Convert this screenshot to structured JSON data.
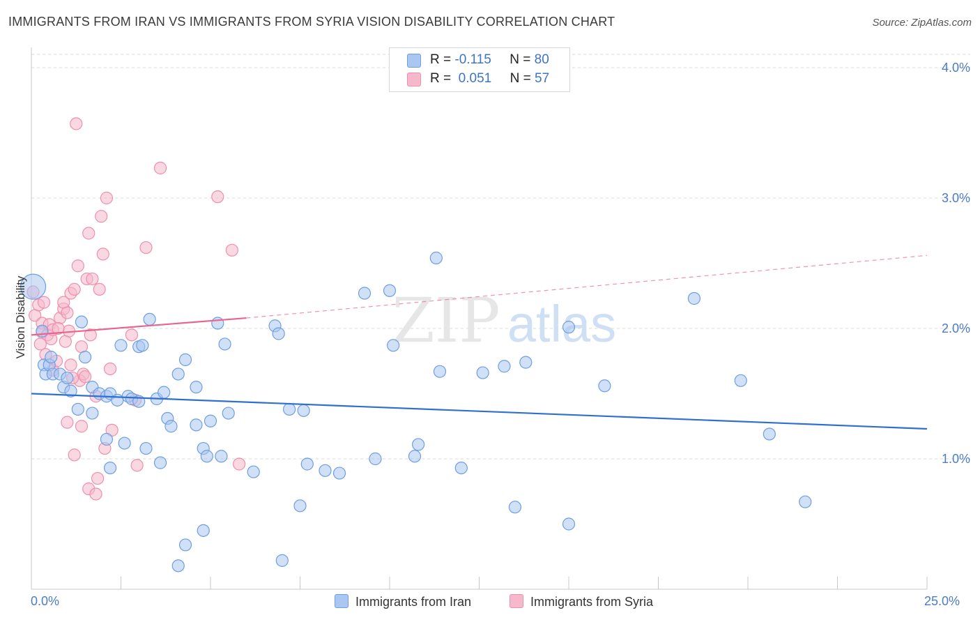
{
  "title": "IMMIGRANTS FROM IRAN VS IMMIGRANTS FROM SYRIA VISION DISABILITY CORRELATION CHART",
  "source": "Source: ZipAtlas.com",
  "watermark": {
    "zip": "ZIP",
    "atlas": "atlas"
  },
  "legend": {
    "rows": [
      {
        "r_label": "R =",
        "r_value": "-0.115",
        "n_label": "N =",
        "n_value": "80"
      },
      {
        "r_label": "R =",
        "r_value": "0.051",
        "n_label": "N =",
        "n_value": "57"
      }
    ]
  },
  "colors": {
    "iran_fill": "#a9c7f0",
    "iran_stroke": "#6e9ee0",
    "iran_line": "#2f6fcf",
    "syria_fill": "#f6b8cb",
    "syria_stroke": "#ee8fae",
    "syria_line": "#e8658f",
    "grid": "#d8d8d8",
    "tick_text": "#4a7cc7"
  },
  "chart_data": {
    "type": "scatter",
    "title": "IMMIGRANTS FROM IRAN VS IMMIGRANTS FROM SYRIA VISION DISABILITY CORRELATION CHART",
    "xlabel": "",
    "ylabel": "Vision Disability",
    "xlim": [
      0,
      25
    ],
    "ylim": [
      0,
      4.15
    ],
    "x_tick_labels": [
      "0.0%",
      "25.0%"
    ],
    "y_ticks": [
      1.0,
      2.0,
      3.0,
      4.0
    ],
    "y_tick_labels": [
      "1.0%",
      "2.0%",
      "3.0%",
      "4.0%"
    ],
    "grid": true,
    "legend_position": "top-center",
    "series": [
      {
        "name": "Immigrants from Iran",
        "R": -0.115,
        "N": 80,
        "trend": {
          "x": [
            0,
            25
          ],
          "y": [
            1.5,
            1.23
          ],
          "dashed_extension": false
        },
        "points": [
          [
            0.05,
            2.32
          ],
          [
            0.3,
            1.98
          ],
          [
            0.35,
            1.72
          ],
          [
            0.4,
            1.65
          ],
          [
            0.5,
            1.72
          ],
          [
            0.55,
            1.78
          ],
          [
            0.6,
            1.65
          ],
          [
            0.8,
            1.65
          ],
          [
            0.9,
            1.55
          ],
          [
            1.0,
            1.62
          ],
          [
            1.1,
            1.52
          ],
          [
            1.3,
            1.38
          ],
          [
            1.4,
            2.05
          ],
          [
            1.5,
            1.78
          ],
          [
            1.7,
            1.55
          ],
          [
            1.7,
            1.35
          ],
          [
            1.9,
            1.5
          ],
          [
            2.1,
            1.48
          ],
          [
            2.2,
            1.5
          ],
          [
            2.1,
            1.15
          ],
          [
            2.2,
            0.93
          ],
          [
            2.4,
            1.45
          ],
          [
            2.5,
            1.87
          ],
          [
            2.6,
            1.12
          ],
          [
            2.7,
            1.48
          ],
          [
            2.8,
            1.46
          ],
          [
            3.0,
            1.44
          ],
          [
            3.0,
            1.86
          ],
          [
            3.1,
            1.87
          ],
          [
            3.2,
            1.08
          ],
          [
            3.3,
            2.07
          ],
          [
            3.5,
            1.46
          ],
          [
            3.6,
            0.97
          ],
          [
            3.7,
            1.51
          ],
          [
            3.8,
            1.31
          ],
          [
            3.9,
            1.25
          ],
          [
            4.1,
            0.18
          ],
          [
            4.1,
            1.65
          ],
          [
            4.3,
            0.34
          ],
          [
            4.3,
            1.76
          ],
          [
            4.6,
            1.55
          ],
          [
            4.6,
            1.26
          ],
          [
            4.8,
            1.08
          ],
          [
            4.9,
            1.02
          ],
          [
            4.8,
            0.45
          ],
          [
            5.0,
            1.29
          ],
          [
            5.2,
            2.04
          ],
          [
            5.3,
            1.02
          ],
          [
            5.4,
            1.88
          ],
          [
            5.5,
            1.35
          ],
          [
            6.2,
            0.9
          ],
          [
            6.8,
            2.02
          ],
          [
            6.9,
            1.96
          ],
          [
            7.0,
            0.22
          ],
          [
            7.2,
            1.38
          ],
          [
            7.5,
            0.64
          ],
          [
            7.6,
            1.37
          ],
          [
            7.7,
            0.96
          ],
          [
            8.2,
            0.91
          ],
          [
            8.6,
            0.89
          ],
          [
            9.3,
            2.27
          ],
          [
            9.6,
            1.0
          ],
          [
            10.0,
            2.29
          ],
          [
            10.1,
            1.87
          ],
          [
            10.7,
            1.02
          ],
          [
            10.8,
            1.11
          ],
          [
            11.3,
            2.54
          ],
          [
            11.4,
            1.67
          ],
          [
            12.0,
            0.93
          ],
          [
            12.6,
            1.66
          ],
          [
            13.2,
            1.71
          ],
          [
            13.5,
            0.63
          ],
          [
            13.8,
            1.74
          ],
          [
            15.0,
            0.5
          ],
          [
            15.0,
            2.01
          ],
          [
            16.0,
            1.56
          ],
          [
            18.5,
            2.23
          ],
          [
            19.8,
            1.6
          ],
          [
            20.6,
            1.19
          ],
          [
            21.6,
            0.67
          ]
        ]
      },
      {
        "name": "Immigrants from Syria",
        "R": 0.051,
        "N": 57,
        "trend": {
          "x": [
            0,
            6
          ],
          "y": [
            1.95,
            2.08
          ],
          "dashed_extension": {
            "x": [
              6,
              25
            ],
            "y": [
              2.08,
              2.56
            ]
          }
        },
        "points": [
          [
            0.05,
            2.28
          ],
          [
            0.1,
            2.1
          ],
          [
            0.2,
            2.18
          ],
          [
            0.25,
            1.88
          ],
          [
            0.3,
            2.04
          ],
          [
            0.3,
            1.97
          ],
          [
            0.4,
            1.8
          ],
          [
            0.45,
            1.95
          ],
          [
            0.5,
            2.03
          ],
          [
            0.55,
            1.92
          ],
          [
            0.6,
            1.99
          ],
          [
            0.6,
            1.68
          ],
          [
            0.7,
            1.75
          ],
          [
            0.8,
            2.08
          ],
          [
            0.9,
            2.15
          ],
          [
            0.9,
            2.2
          ],
          [
            0.95,
            1.9
          ],
          [
            1.0,
            2.12
          ],
          [
            1.0,
            1.28
          ],
          [
            1.05,
            1.98
          ],
          [
            1.1,
            2.27
          ],
          [
            1.1,
            1.72
          ],
          [
            1.2,
            2.3
          ],
          [
            1.2,
            1.03
          ],
          [
            1.25,
            3.57
          ],
          [
            1.3,
            2.48
          ],
          [
            1.35,
            1.6
          ],
          [
            1.4,
            1.25
          ],
          [
            1.4,
            1.86
          ],
          [
            1.45,
            1.65
          ],
          [
            1.5,
            1.63
          ],
          [
            1.55,
            2.38
          ],
          [
            1.6,
            0.77
          ],
          [
            1.6,
            2.73
          ],
          [
            1.65,
            1.95
          ],
          [
            1.7,
            2.38
          ],
          [
            1.8,
            0.73
          ],
          [
            1.8,
            1.48
          ],
          [
            1.85,
            0.85
          ],
          [
            1.9,
            2.3
          ],
          [
            1.95,
            2.86
          ],
          [
            2.0,
            2.57
          ],
          [
            2.05,
            1.08
          ],
          [
            2.1,
            3.0
          ],
          [
            2.2,
            1.69
          ],
          [
            2.25,
            1.22
          ],
          [
            2.8,
            1.95
          ],
          [
            2.9,
            1.45
          ],
          [
            2.95,
            0.95
          ],
          [
            3.2,
            2.62
          ],
          [
            3.6,
            3.23
          ],
          [
            5.2,
            3.01
          ],
          [
            5.6,
            2.6
          ],
          [
            5.8,
            0.96
          ],
          [
            0.35,
            2.2
          ],
          [
            0.75,
            2.0
          ],
          [
            1.15,
            1.62
          ]
        ]
      }
    ]
  },
  "bottom_legend": {
    "iran_label": "Immigrants from Iran",
    "syria_label": "Immigrants from Syria"
  }
}
